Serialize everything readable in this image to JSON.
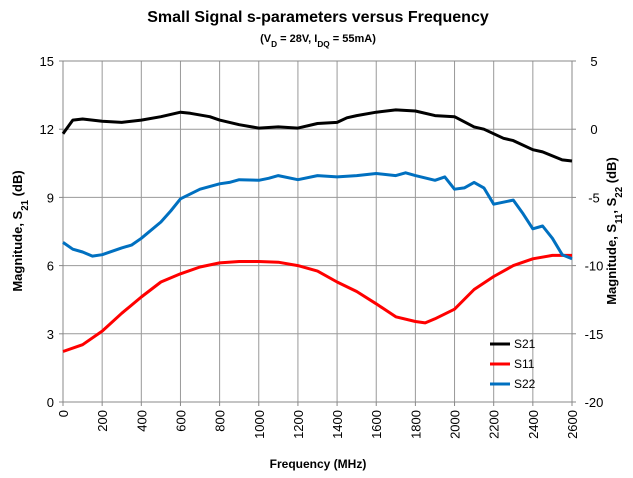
{
  "chart_data": {
    "type": "line",
    "title": "Small Signal s-parameters versus Frequency",
    "subtitle": [
      "(V",
      "D",
      " = 28V, I",
      "DQ",
      " = 55mA)"
    ],
    "x_label": "Frequency (MHz)",
    "y_label": [
      "Magnitude, S",
      "21",
      " (dB)"
    ],
    "y2_label": [
      "Magnitude, S",
      "11",
      ", S",
      "22",
      " (dB)"
    ],
    "xlim": [
      0,
      2600
    ],
    "xticks": [
      0,
      200,
      400,
      600,
      800,
      1000,
      1200,
      1400,
      1600,
      1800,
      2000,
      2200,
      2400,
      2600
    ],
    "ylim": [
      0,
      15
    ],
    "yticks": [
      0,
      3,
      6,
      9,
      12,
      15
    ],
    "y2lim": [
      -20,
      5
    ],
    "y2ticks": [
      -20,
      -15,
      -10,
      -5,
      0,
      5
    ],
    "grid": true,
    "legend": "lower right",
    "series": [
      {
        "name": "S21",
        "color": "#000000",
        "x": [
          0,
          50,
          100,
          200,
          300,
          400,
          500,
          600,
          650,
          750,
          800,
          900,
          1000,
          1100,
          1200,
          1300,
          1400,
          1450,
          1500,
          1600,
          1700,
          1800,
          1900,
          2000,
          2100,
          2150,
          2250,
          2300,
          2400,
          2450,
          2550,
          2600
        ],
        "values": [
          11.8,
          12.4,
          12.45,
          12.35,
          12.3,
          12.4,
          12.55,
          12.75,
          12.7,
          12.55,
          12.4,
          12.2,
          12.05,
          12.1,
          12.05,
          12.25,
          12.3,
          12.5,
          12.6,
          12.75,
          12.85,
          12.8,
          12.6,
          12.55,
          12.1,
          12.0,
          11.6,
          11.5,
          11.1,
          11.0,
          10.65,
          10.6
        ]
      },
      {
        "name": "S11",
        "color": "#ff0000",
        "axis": "y2",
        "x": [
          0,
          100,
          200,
          300,
          400,
          500,
          600,
          700,
          800,
          900,
          1000,
          1100,
          1200,
          1300,
          1400,
          1500,
          1600,
          1700,
          1800,
          1850,
          1900,
          2000,
          2100,
          2200,
          2300,
          2400,
          2500,
          2600
        ],
        "values": [
          -16.3,
          -15.8,
          -14.8,
          -13.5,
          -12.3,
          -11.2,
          -10.6,
          -10.1,
          -9.8,
          -9.7,
          -9.7,
          -9.75,
          -10,
          -10.4,
          -11.2,
          -11.9,
          -12.8,
          -13.75,
          -14.1,
          -14.2,
          -13.9,
          -13.2,
          -11.75,
          -10.8,
          -10,
          -9.5,
          -9.25,
          -9.25
        ]
      },
      {
        "name": "S22",
        "color": "#0070c0",
        "axis": "y2",
        "x": [
          0,
          50,
          100,
          150,
          200,
          300,
          350,
          400,
          500,
          550,
          600,
          700,
          800,
          850,
          900,
          1000,
          1050,
          1100,
          1200,
          1300,
          1400,
          1500,
          1600,
          1700,
          1750,
          1800,
          1900,
          1950,
          2000,
          2050,
          2100,
          2150,
          2200,
          2300,
          2350,
          2400,
          2450,
          2500,
          2550,
          2600
        ],
        "values": [
          -8.3,
          -8.8,
          -9.0,
          -9.3,
          -9.2,
          -8.7,
          -8.5,
          -8.0,
          -6.8,
          -6.0,
          -5.1,
          -4.4,
          -4.0,
          -3.9,
          -3.7,
          -3.75,
          -3.6,
          -3.4,
          -3.7,
          -3.4,
          -3.5,
          -3.4,
          -3.25,
          -3.4,
          -3.2,
          -3.4,
          -3.75,
          -3.5,
          -4.4,
          -4.3,
          -3.9,
          -4.3,
          -5.5,
          -5.2,
          -6.2,
          -7.3,
          -7.1,
          -8.0,
          -9.2,
          -9.5
        ]
      }
    ]
  }
}
